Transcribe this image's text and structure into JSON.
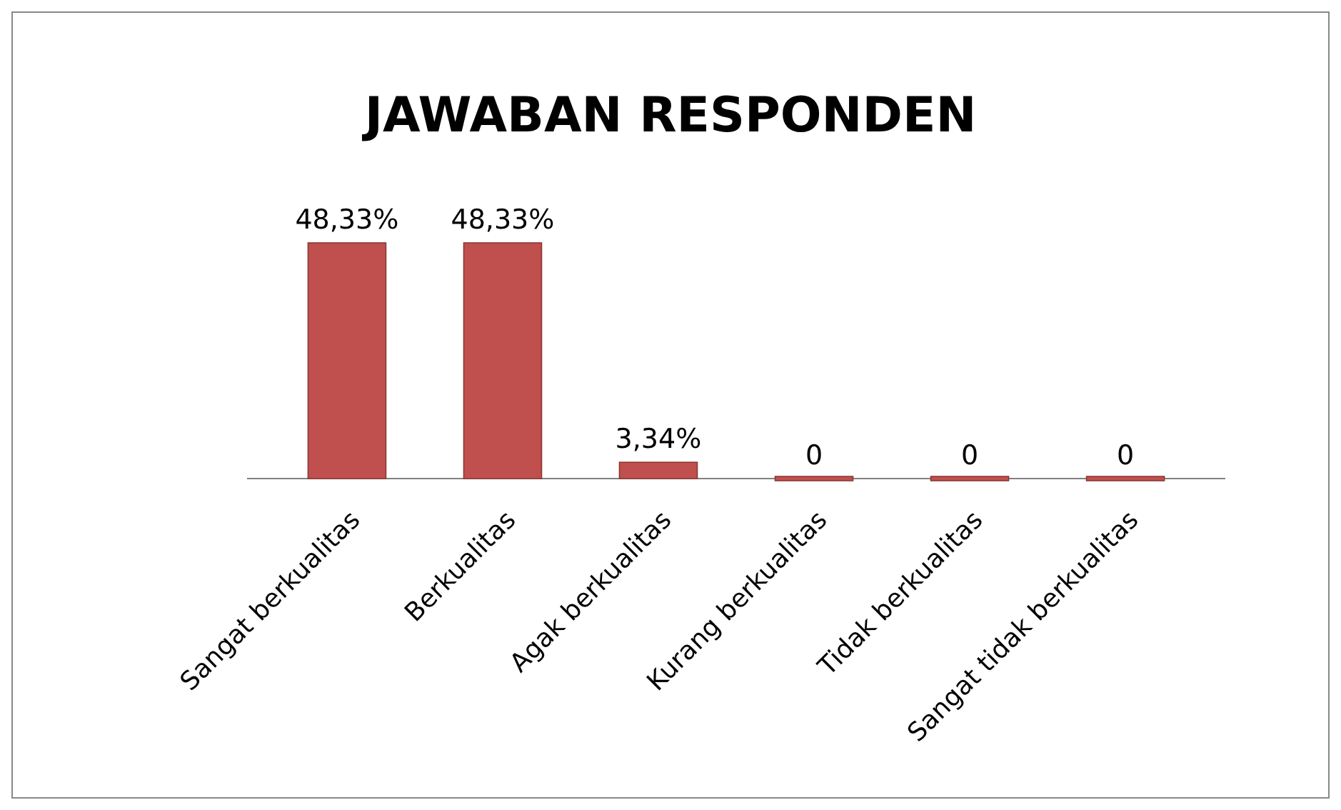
{
  "chart_data": {
    "type": "bar",
    "title": "JAWABAN RESPONDEN",
    "categories": [
      "Sangat berkualitas",
      "Berkualitas",
      "Agak berkualitas",
      "Kurang berkualitas",
      "Tidak berkualitas",
      "Sangat tidak berkualitas"
    ],
    "values": [
      48.33,
      48.33,
      3.34,
      0,
      0,
      0
    ],
    "value_labels": [
      "48,33%",
      "48,33%",
      "3,34%",
      "0",
      "0",
      "0"
    ],
    "color": "#c0504d"
  }
}
